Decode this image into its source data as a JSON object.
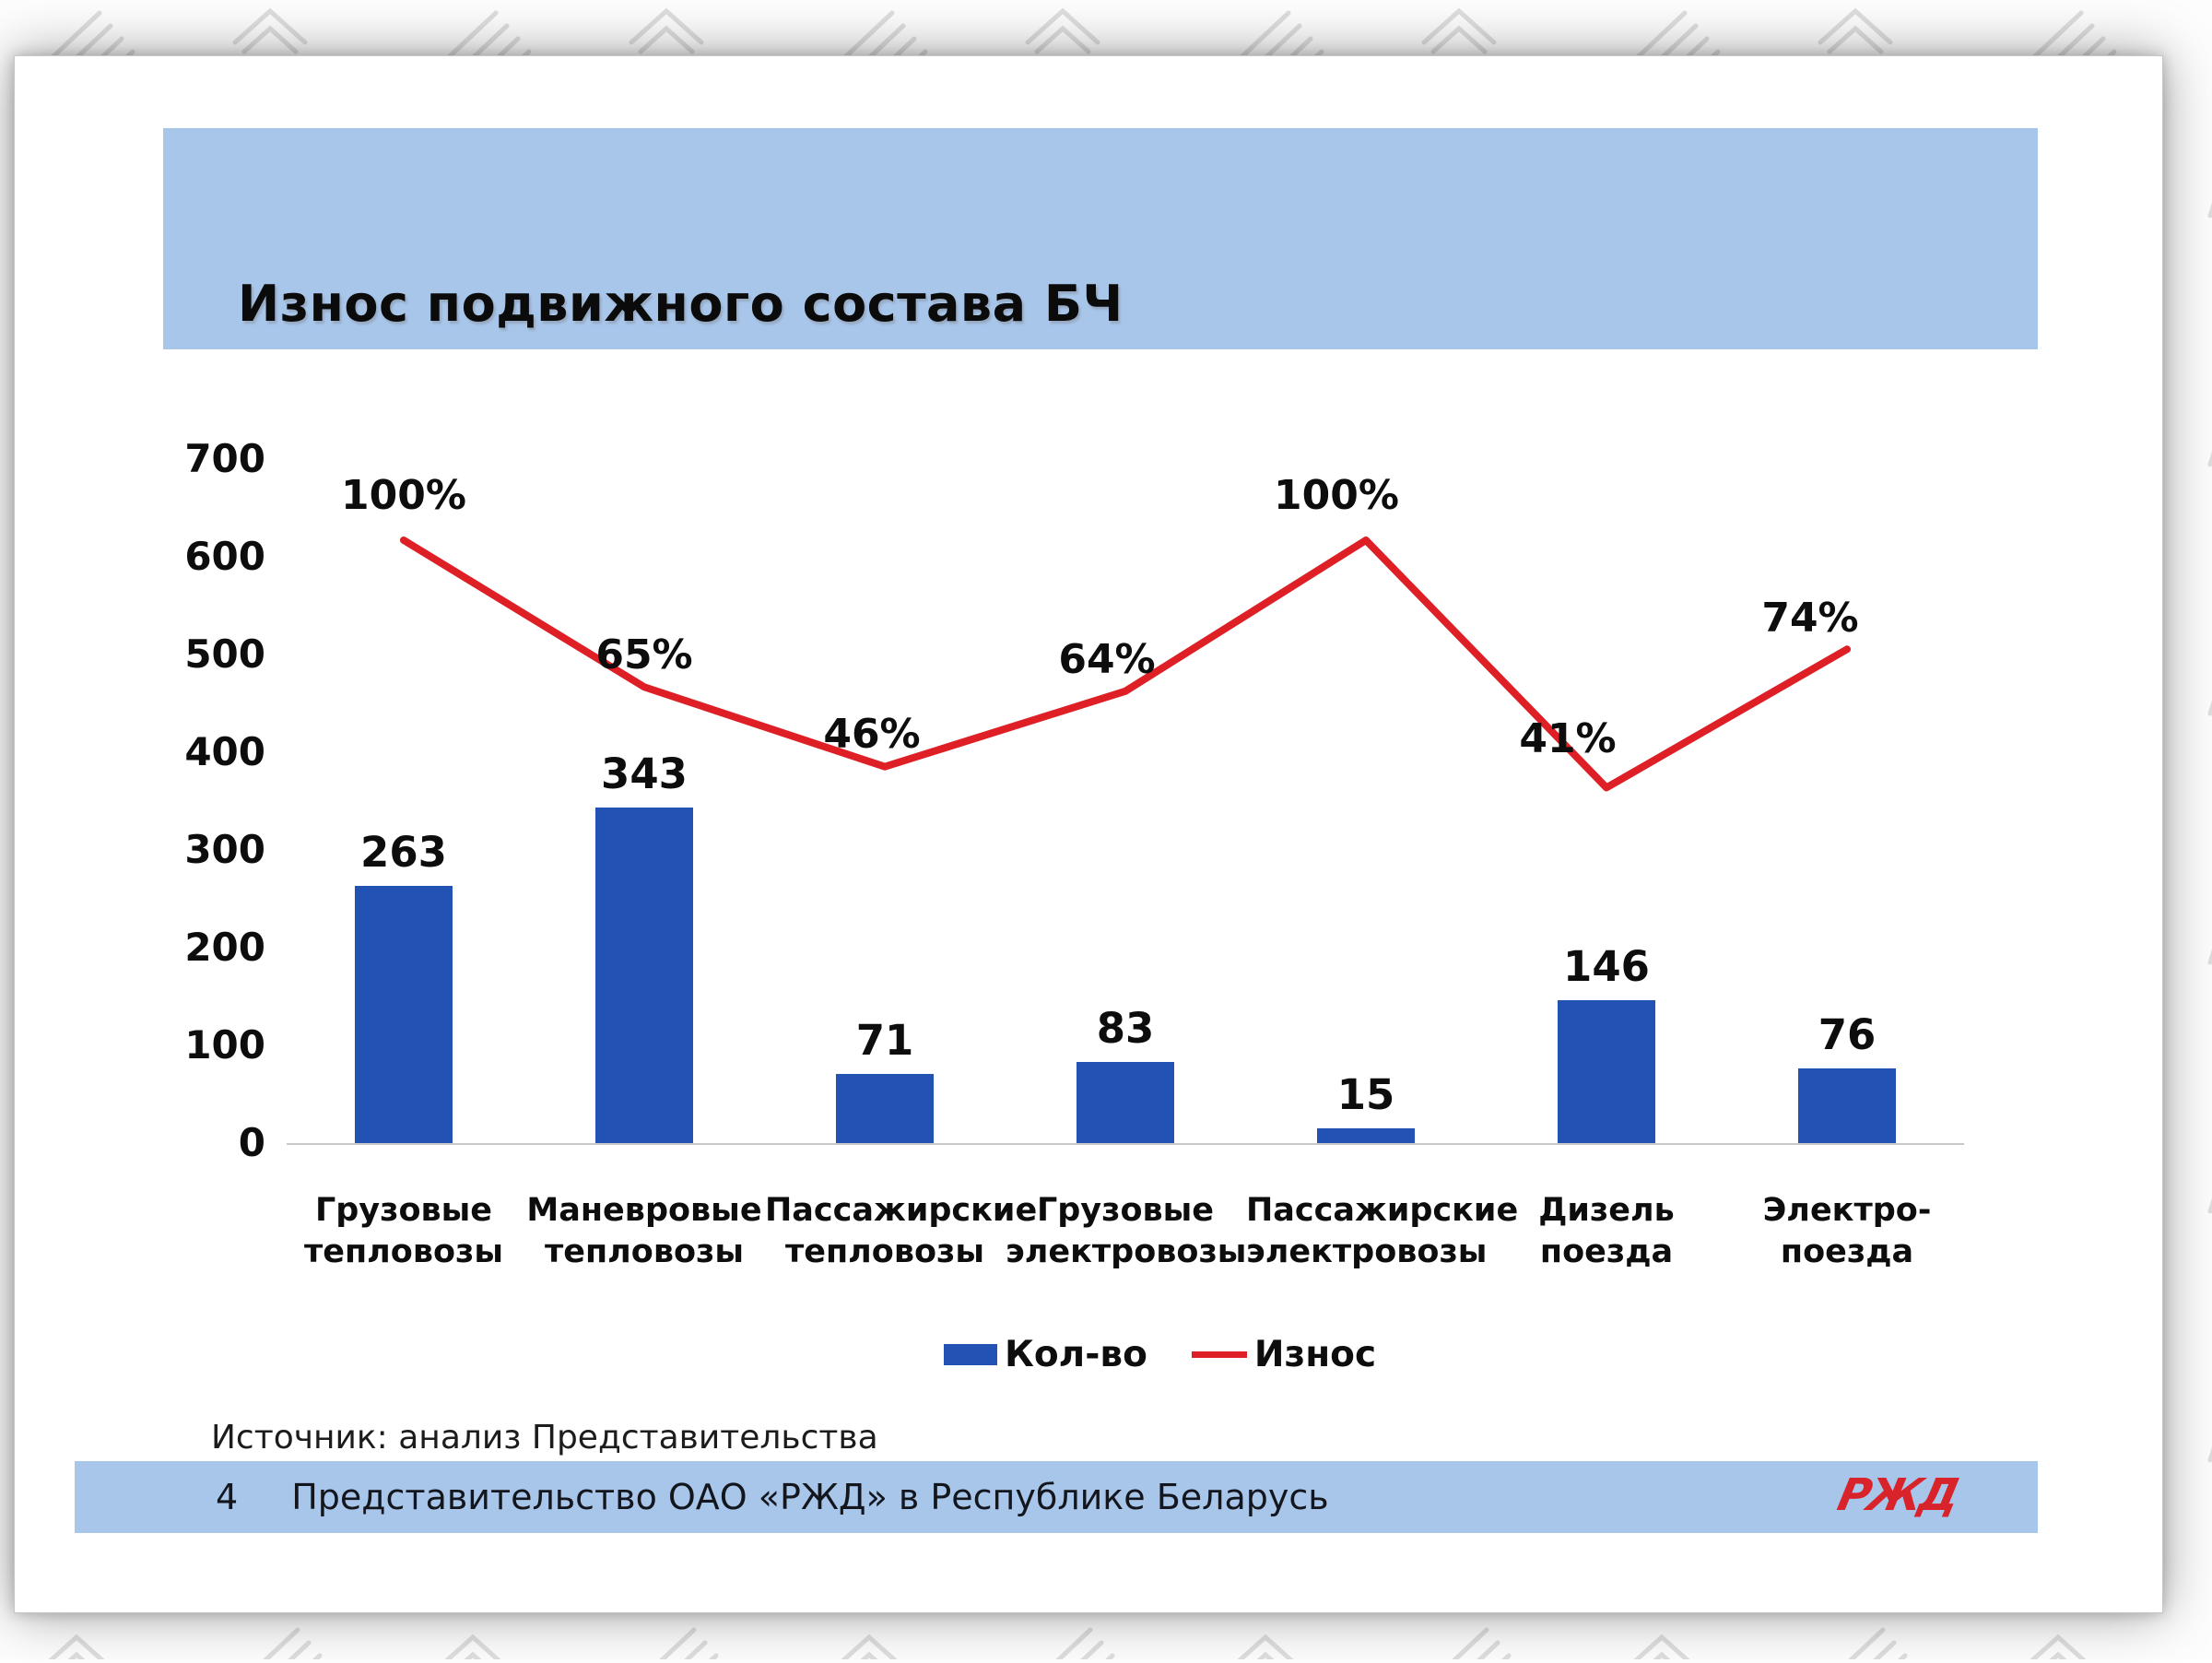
{
  "slide": {
    "title": "Износ подвижного состава БЧ",
    "source_note": "Источник: анализ Представительства",
    "footer": {
      "page_number": "4",
      "text": "Представительство ОАО «РЖД» в Республике Беларусь",
      "logo_text": "РЖД"
    }
  },
  "colors": {
    "band_blue": "#a8c5ea",
    "bar_blue": "#2152b4",
    "line_red": "#de1f26",
    "logo_red": "#d8232a",
    "axis_gray": "#c9c9c9",
    "pattern_gray": "#dedede"
  },
  "chart_data": {
    "type": "bar+line combo",
    "title": "Износ подвижного состава БЧ",
    "categories": [
      "Грузовые тепловозы",
      "Маневровые тепловозы",
      "Пассажирские тепловозы",
      "Грузовые электровозы",
      "Пассажирские электровозы",
      "Дизель поезда",
      "Электро-поезда"
    ],
    "category_label_lines": [
      [
        "Грузовые",
        "тепловозы"
      ],
      [
        "Маневровые",
        "тепловозы"
      ],
      [
        "Пассажирские",
        "тепловозы"
      ],
      [
        "Грузовые",
        "электровозы"
      ],
      [
        "Пассажирские",
        "электровозы"
      ],
      [
        "Дизель поезда"
      ],
      [
        "Электро-поезда"
      ]
    ],
    "series": [
      {
        "name": "Кол-во",
        "type": "bar",
        "values": [
          263,
          343,
          71,
          83,
          15,
          146,
          76
        ]
      },
      {
        "name": "Износ",
        "type": "line",
        "unit": "%",
        "values": [
          100,
          65,
          46,
          64,
          100,
          41,
          74
        ]
      }
    ],
    "y_axis": {
      "min": 0,
      "max": 700,
      "tick_step": 100,
      "ticks": [
        "700",
        "600",
        "500",
        "400",
        "300",
        "200",
        "100",
        "0"
      ]
    },
    "legend": {
      "position": "bottom",
      "items": [
        "Кол-во",
        "Износ"
      ]
    },
    "grid": false
  }
}
